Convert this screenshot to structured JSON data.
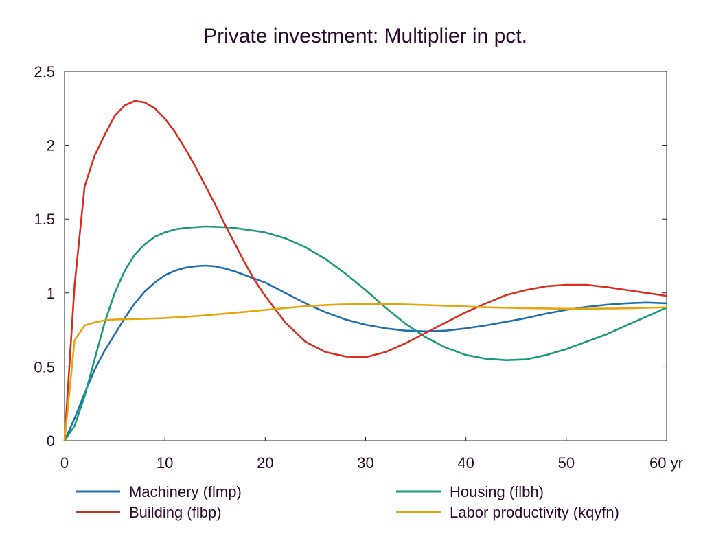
{
  "chart_data": {
    "type": "line",
    "title": "Private investment: Multiplier in pct.",
    "xlabel": "",
    "ylabel": "",
    "xlim": [
      0,
      60
    ],
    "ylim": [
      0,
      2.5
    ],
    "x_ticks": [
      0,
      10,
      20,
      30,
      40,
      50,
      60
    ],
    "x_tick_labels": [
      "0",
      "10",
      "20",
      "30",
      "40",
      "50",
      "60 yr"
    ],
    "y_ticks": [
      0,
      0.5,
      1,
      1.5,
      2,
      2.5
    ],
    "y_tick_labels": [
      "0",
      "0.5",
      "1",
      "1.5",
      "2",
      "2.5"
    ],
    "grid": false,
    "legend_position": "bottom",
    "series": [
      {
        "name": "Machinery (flmp)",
        "color": "#1f6fae",
        "x": [
          0,
          1,
          2,
          3,
          4,
          5,
          6,
          7,
          8,
          9,
          10,
          11,
          12,
          13,
          14,
          15,
          16,
          17,
          18,
          19,
          20,
          22,
          24,
          26,
          28,
          30,
          32,
          34,
          36,
          38,
          40,
          42,
          44,
          46,
          48,
          50,
          52,
          54,
          56,
          58,
          60
        ],
        "y": [
          0,
          0.15,
          0.32,
          0.48,
          0.61,
          0.72,
          0.83,
          0.93,
          1.01,
          1.07,
          1.12,
          1.15,
          1.17,
          1.18,
          1.185,
          1.18,
          1.165,
          1.145,
          1.12,
          1.095,
          1.07,
          1.0,
          0.93,
          0.87,
          0.82,
          0.785,
          0.76,
          0.745,
          0.74,
          0.745,
          0.76,
          0.78,
          0.805,
          0.83,
          0.86,
          0.885,
          0.905,
          0.92,
          0.93,
          0.935,
          0.93
        ]
      },
      {
        "name": "Housing (flbh)",
        "color": "#1a9a78",
        "x": [
          0,
          1,
          2,
          3,
          4,
          5,
          6,
          7,
          8,
          9,
          10,
          11,
          12,
          13,
          14,
          15,
          16,
          17,
          18,
          19,
          20,
          22,
          24,
          26,
          28,
          30,
          32,
          34,
          36,
          38,
          40,
          42,
          44,
          46,
          48,
          50,
          52,
          54,
          56,
          58,
          60
        ],
        "y": [
          0,
          0.1,
          0.3,
          0.55,
          0.8,
          1.0,
          1.15,
          1.26,
          1.33,
          1.38,
          1.41,
          1.43,
          1.44,
          1.445,
          1.45,
          1.448,
          1.445,
          1.44,
          1.43,
          1.42,
          1.41,
          1.37,
          1.31,
          1.23,
          1.13,
          1.02,
          0.9,
          0.79,
          0.7,
          0.63,
          0.58,
          0.555,
          0.545,
          0.55,
          0.58,
          0.62,
          0.67,
          0.72,
          0.78,
          0.84,
          0.9
        ]
      },
      {
        "name": "Building (flbp)",
        "color": "#d62e1f",
        "x": [
          0,
          1,
          2,
          3,
          4,
          5,
          6,
          7,
          8,
          9,
          10,
          11,
          12,
          13,
          14,
          15,
          16,
          17,
          18,
          19,
          20,
          21,
          22,
          24,
          26,
          28,
          30,
          32,
          34,
          36,
          38,
          40,
          42,
          44,
          46,
          48,
          50,
          52,
          54,
          56,
          58,
          60
        ],
        "y": [
          0,
          1.05,
          1.72,
          1.93,
          2.07,
          2.2,
          2.27,
          2.3,
          2.29,
          2.25,
          2.18,
          2.09,
          1.98,
          1.86,
          1.73,
          1.6,
          1.46,
          1.33,
          1.2,
          1.08,
          0.98,
          0.89,
          0.8,
          0.67,
          0.6,
          0.57,
          0.565,
          0.6,
          0.66,
          0.73,
          0.8,
          0.87,
          0.93,
          0.985,
          1.02,
          1.045,
          1.055,
          1.055,
          1.04,
          1.02,
          1.0,
          0.98
        ]
      },
      {
        "name": "Labor productivity (kqyfn)",
        "color": "#e6a50a",
        "x": [
          0,
          1,
          2,
          3,
          4,
          5,
          6,
          8,
          10,
          12,
          14,
          16,
          18,
          20,
          22,
          24,
          26,
          28,
          30,
          32,
          34,
          36,
          38,
          40,
          42,
          44,
          46,
          48,
          50,
          52,
          54,
          56,
          58,
          60
        ],
        "y": [
          0,
          0.68,
          0.78,
          0.8,
          0.815,
          0.82,
          0.822,
          0.825,
          0.83,
          0.838,
          0.848,
          0.86,
          0.872,
          0.885,
          0.898,
          0.91,
          0.918,
          0.923,
          0.925,
          0.925,
          0.922,
          0.918,
          0.913,
          0.908,
          0.903,
          0.9,
          0.897,
          0.895,
          0.893,
          0.893,
          0.894,
          0.896,
          0.899,
          0.903
        ]
      }
    ]
  }
}
